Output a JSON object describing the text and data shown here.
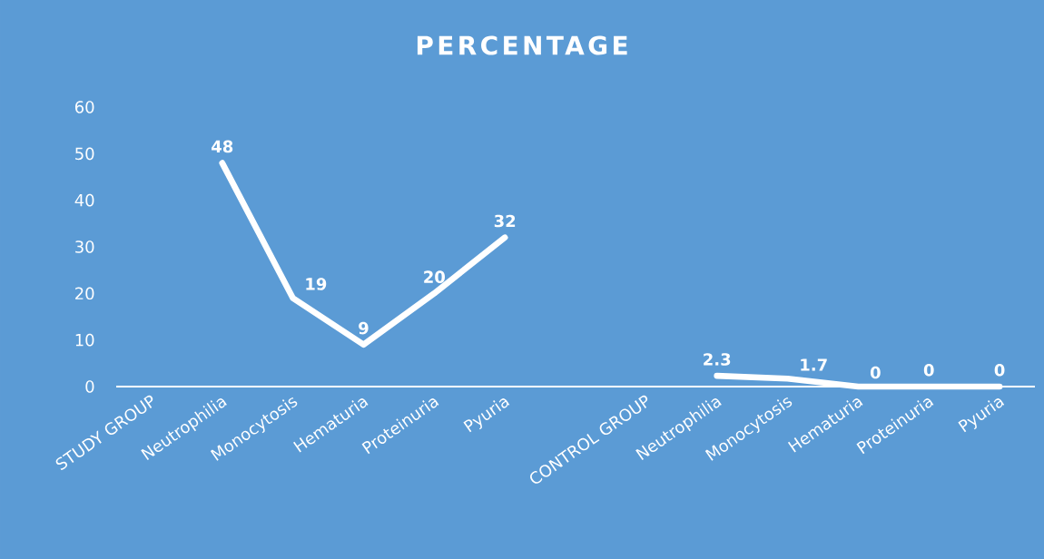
{
  "chart_data": {
    "type": "line",
    "title": "PERCENTAGE",
    "categories": [
      "STUDY GROUP",
      "Neutrophilia",
      "Monocytosis",
      "Hematuria",
      "Proteinuria",
      "Pyuria",
      null,
      "CONTROL GROUP",
      "Neutrophilia",
      "Monocytosis",
      "Hematuria",
      "Proteinuria",
      "Pyuria"
    ],
    "values": [
      null,
      48,
      19,
      9,
      20,
      32,
      null,
      null,
      2.3,
      1.7,
      0,
      0,
      0
    ],
    "color": "#ffffff",
    "ylim": [
      0,
      60
    ],
    "yticks": [
      0,
      10,
      20,
      30,
      40,
      50,
      60
    ],
    "data_labels": true
  }
}
